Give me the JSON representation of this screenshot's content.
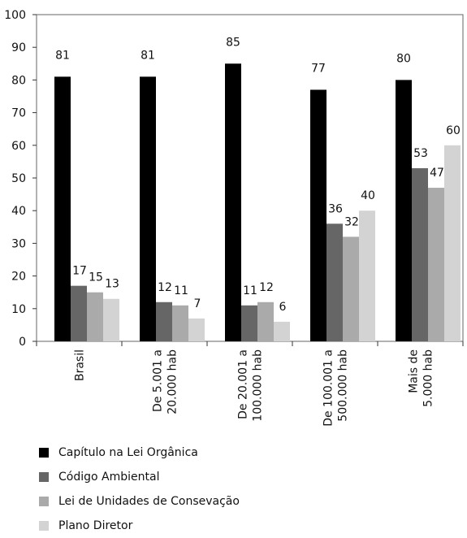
{
  "chart_data": {
    "type": "bar",
    "categories": [
      "Brasil",
      "De 5.001 a 20.000 hab",
      "De 20.001 a 100.000 hab",
      "De 100.001 a 500.000 hab",
      "Mais de 5.000 hab"
    ],
    "category_lines": [
      [
        "Brasil"
      ],
      [
        "De 5.001 a",
        "20.000 hab"
      ],
      [
        "De 20.001 a",
        "100.000 hab"
      ],
      [
        "De 100.001 a",
        "500.000 hab"
      ],
      [
        "Mais de",
        "5.000 hab"
      ]
    ],
    "series": [
      {
        "name": "Capítulo na Lei Orgânica",
        "color": "#000000",
        "values": [
          81,
          81,
          85,
          77,
          80
        ]
      },
      {
        "name": "Código Ambiental",
        "color": "#666666",
        "values": [
          17,
          12,
          11,
          36,
          53
        ]
      },
      {
        "name": "Lei de Unidades de Consevação",
        "color": "#aaaaaa",
        "values": [
          15,
          11,
          12,
          32,
          47
        ]
      },
      {
        "name": "Plano Diretor",
        "color": "#d3d3d3",
        "values": [
          13,
          7,
          6,
          40,
          60
        ]
      }
    ],
    "ylim": [
      0,
      100
    ],
    "yticks": [
      0,
      10,
      20,
      30,
      40,
      50,
      60,
      70,
      80,
      90,
      100
    ],
    "title": "",
    "xlabel": "",
    "ylabel": "",
    "grid": false,
    "legend_position": "bottom"
  }
}
